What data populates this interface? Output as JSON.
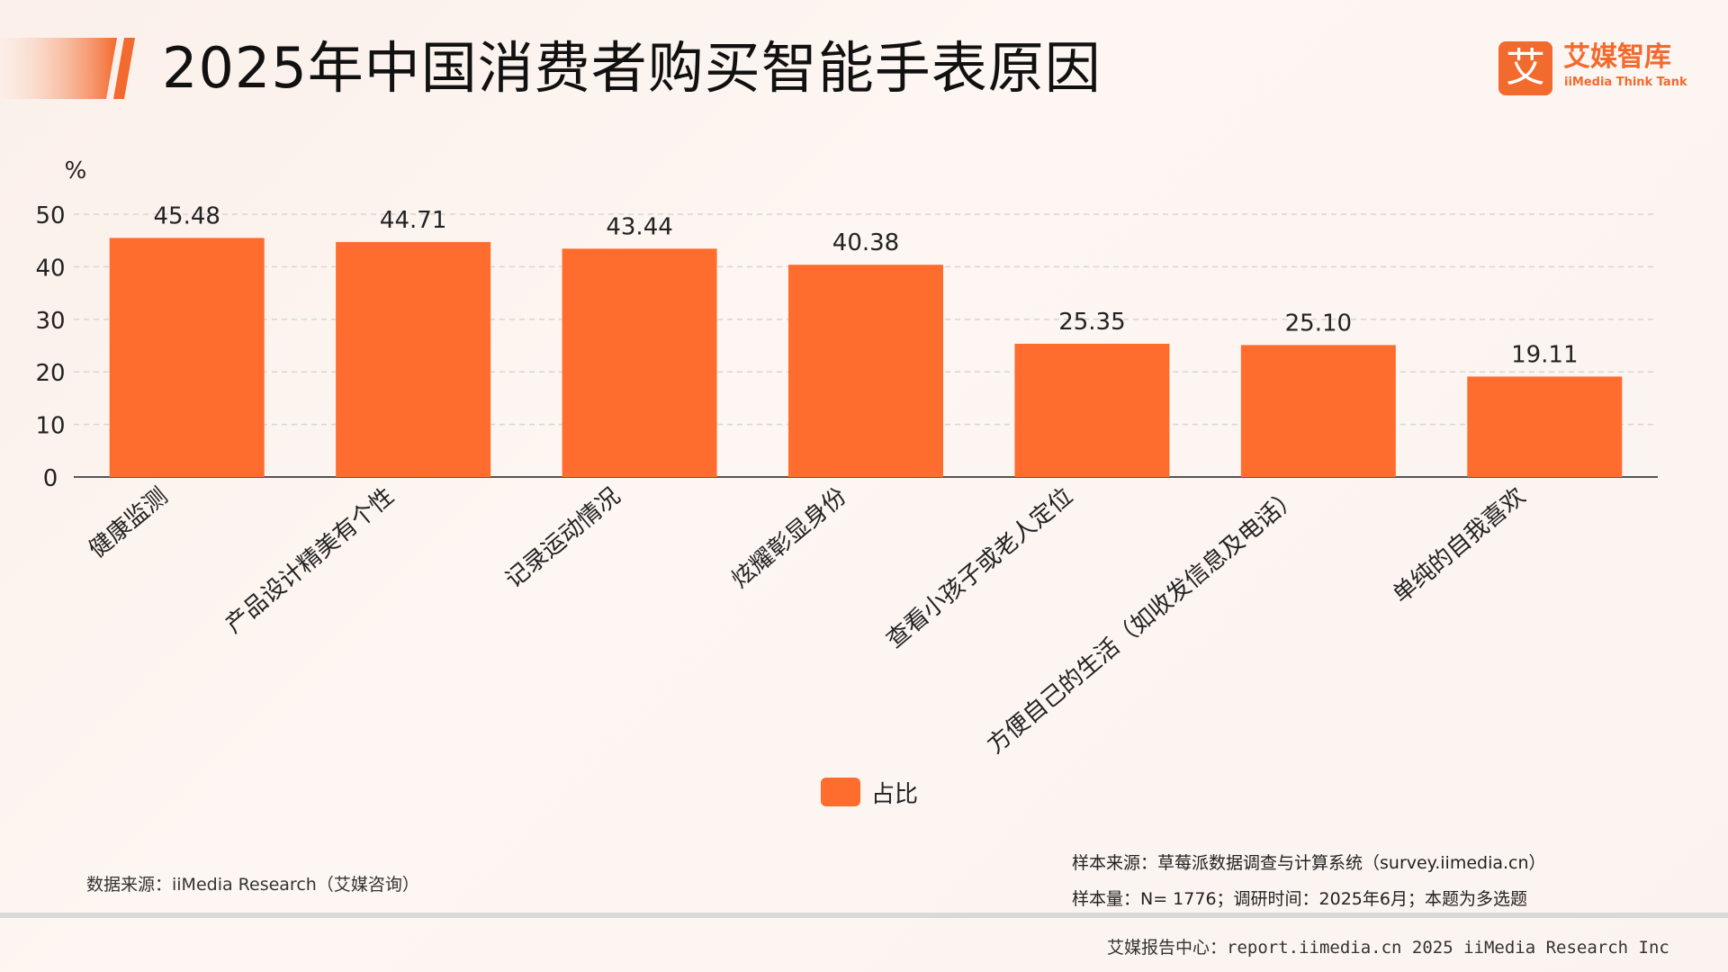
{
  "header": {
    "title": "2025年中国消费者购买智能手表原因"
  },
  "logo": {
    "mark": "艾",
    "name_cn": "艾媒智库",
    "name_en": "iiMedia Think Tank"
  },
  "colors": {
    "bar": "#ff6d2e",
    "accent": "#f26a2e"
  },
  "chart_data": {
    "type": "bar",
    "title": "",
    "ylabel": "%",
    "xlabel": "",
    "ylim": [
      0,
      50
    ],
    "yticks": [
      0,
      10,
      20,
      30,
      40,
      50
    ],
    "grid": true,
    "legend_position": "bottom",
    "categories": [
      "健康监测",
      "产品设计精美有个性",
      "记录运动情况",
      "炫耀彰显身份",
      "查看小孩子或老人定位",
      "方便自己的生活（如收发信息及电话）",
      "单纯的自我喜欢"
    ],
    "series": [
      {
        "name": "占比",
        "values": [
          45.48,
          44.71,
          43.44,
          40.38,
          25.35,
          25.1,
          19.11
        ],
        "labels": [
          "45.48",
          "44.71",
          "43.44",
          "40.38",
          "25.35",
          "25.10",
          "19.11"
        ]
      }
    ]
  },
  "legend": {
    "label": "占比"
  },
  "notes": {
    "data_source": "数据来源：iiMedia Research（艾媒咨询）",
    "sample_source": "样本来源：草莓派数据调查与计算系统（survey.iimedia.cn）",
    "sample_size": "样本量：N= 1776；调研时间：2025年6月；本题为多选题"
  },
  "footer": {
    "text": "艾媒报告中心：report.iimedia.cn   2025 iiMedia Research Inc"
  }
}
